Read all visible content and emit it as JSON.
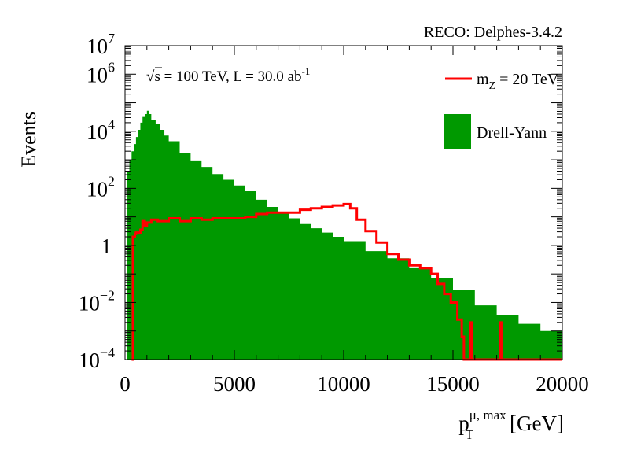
{
  "chart_data": {
    "type": "histogram",
    "top_label": "RECO: Delphes-3.4.2",
    "annotation": {
      "sqrt": "√",
      "s_text": "s = 100 TeV, L = 30.0 ab",
      "sup": "-1"
    },
    "ylabel": "Events",
    "xlabel": {
      "main": "p",
      "sup": "μ, max",
      "sub": "T",
      "unit": "[GeV]"
    },
    "x_range": [
      0,
      20000
    ],
    "y_range_log10": [
      -4,
      7
    ],
    "y_scale": "log",
    "x_ticks": [
      {
        "value": 0,
        "label": "0"
      },
      {
        "value": 5000,
        "label": "5000"
      },
      {
        "value": 10000,
        "label": "10000"
      },
      {
        "value": 15000,
        "label": "15000"
      },
      {
        "value": 20000,
        "label": "20000"
      }
    ],
    "y_ticks": [
      {
        "exp": -4,
        "base": "10",
        "sup": "−4"
      },
      {
        "exp": -2,
        "base": "10",
        "sup": "−2"
      },
      {
        "exp": 0,
        "base": "1",
        "sup": ""
      },
      {
        "exp": 2,
        "base": "10",
        "sup": "2"
      },
      {
        "exp": 4,
        "base": "10",
        "sup": "4"
      },
      {
        "exp": 6,
        "base": "10",
        "sup": "6"
      },
      {
        "exp": 7,
        "base": "10",
        "sup": "7"
      }
    ],
    "legend": {
      "position": "top-right",
      "entries": [
        {
          "id": "signal",
          "label_main": "m",
          "label_sub": "Z",
          "label_rest": " = 20 TeV",
          "style": "line"
        },
        {
          "id": "background",
          "label": "Drell-Yann",
          "style": "fill"
        }
      ]
    },
    "colors": {
      "signal": "#ff0000",
      "background": "#009900"
    },
    "series": [
      {
        "id": "background",
        "style": "filled-histogram",
        "points": [
          [
            0,
            -4
          ],
          [
            100,
            2.6
          ],
          [
            200,
            3.0
          ],
          [
            300,
            3.3
          ],
          [
            400,
            3.55
          ],
          [
            500,
            3.8
          ],
          [
            600,
            4.05
          ],
          [
            700,
            4.3
          ],
          [
            800,
            4.5
          ],
          [
            900,
            4.6
          ],
          [
            1000,
            4.72
          ],
          [
            1100,
            4.6
          ],
          [
            1200,
            4.4
          ],
          [
            1400,
            4.25
          ],
          [
            1600,
            4.05
          ],
          [
            1800,
            3.85
          ],
          [
            2000,
            3.65
          ],
          [
            2500,
            3.25
          ],
          [
            3000,
            2.95
          ],
          [
            3500,
            2.75
          ],
          [
            4000,
            2.5
          ],
          [
            4500,
            2.3
          ],
          [
            5000,
            2.1
          ],
          [
            5500,
            1.9
          ],
          [
            6000,
            1.6
          ],
          [
            6500,
            1.35
          ],
          [
            7000,
            1.15
          ],
          [
            7500,
            0.95
          ],
          [
            8000,
            0.75
          ],
          [
            8500,
            0.6
          ],
          [
            9000,
            0.45
          ],
          [
            9500,
            0.3
          ],
          [
            10000,
            0.15
          ],
          [
            11000,
            -0.2
          ],
          [
            12000,
            -0.45
          ],
          [
            13000,
            -0.8
          ],
          [
            14000,
            -1.15
          ],
          [
            15000,
            -1.55
          ],
          [
            16000,
            -2.1
          ],
          [
            17000,
            -2.45
          ],
          [
            18000,
            -2.75
          ],
          [
            19000,
            -3.0
          ],
          [
            20000,
            -3.1
          ]
        ]
      },
      {
        "id": "signal",
        "style": "line",
        "points": [
          [
            300,
            -4
          ],
          [
            330,
            -4
          ],
          [
            360,
            0.3
          ],
          [
            450,
            0.4
          ],
          [
            500,
            0.45
          ],
          [
            700,
            0.55
          ],
          [
            800,
            0.85
          ],
          [
            900,
            0.7
          ],
          [
            1000,
            0.8
          ],
          [
            1200,
            0.9
          ],
          [
            1500,
            0.85
          ],
          [
            2000,
            0.95
          ],
          [
            2500,
            0.85
          ],
          [
            3000,
            0.95
          ],
          [
            3500,
            0.9
          ],
          [
            4000,
            0.95
          ],
          [
            4500,
            0.95
          ],
          [
            5000,
            0.95
          ],
          [
            5500,
            1.0
          ],
          [
            6000,
            1.1
          ],
          [
            6500,
            1.15
          ],
          [
            7000,
            1.15
          ],
          [
            7500,
            1.15
          ],
          [
            8000,
            1.25
          ],
          [
            8500,
            1.3
          ],
          [
            9000,
            1.35
          ],
          [
            9500,
            1.4
          ],
          [
            10000,
            1.45
          ],
          [
            10300,
            1.3
          ],
          [
            10600,
            0.9
          ],
          [
            11000,
            0.5
          ],
          [
            11500,
            0.1
          ],
          [
            12000,
            -0.3
          ],
          [
            12500,
            -0.5
          ],
          [
            13000,
            -0.7
          ],
          [
            13500,
            -0.8
          ],
          [
            14000,
            -1.0
          ],
          [
            14300,
            -1.35
          ],
          [
            14600,
            -1.7
          ],
          [
            14900,
            -2.0
          ],
          [
            15200,
            -2.6
          ],
          [
            15400,
            -3.2
          ],
          [
            15500,
            -4
          ],
          [
            15750,
            -4
          ],
          [
            15800,
            -2.7
          ],
          [
            15860,
            -4
          ],
          [
            17100,
            -4
          ],
          [
            17150,
            -2.7
          ],
          [
            17210,
            -4
          ],
          [
            20000,
            -4
          ]
        ]
      }
    ]
  }
}
